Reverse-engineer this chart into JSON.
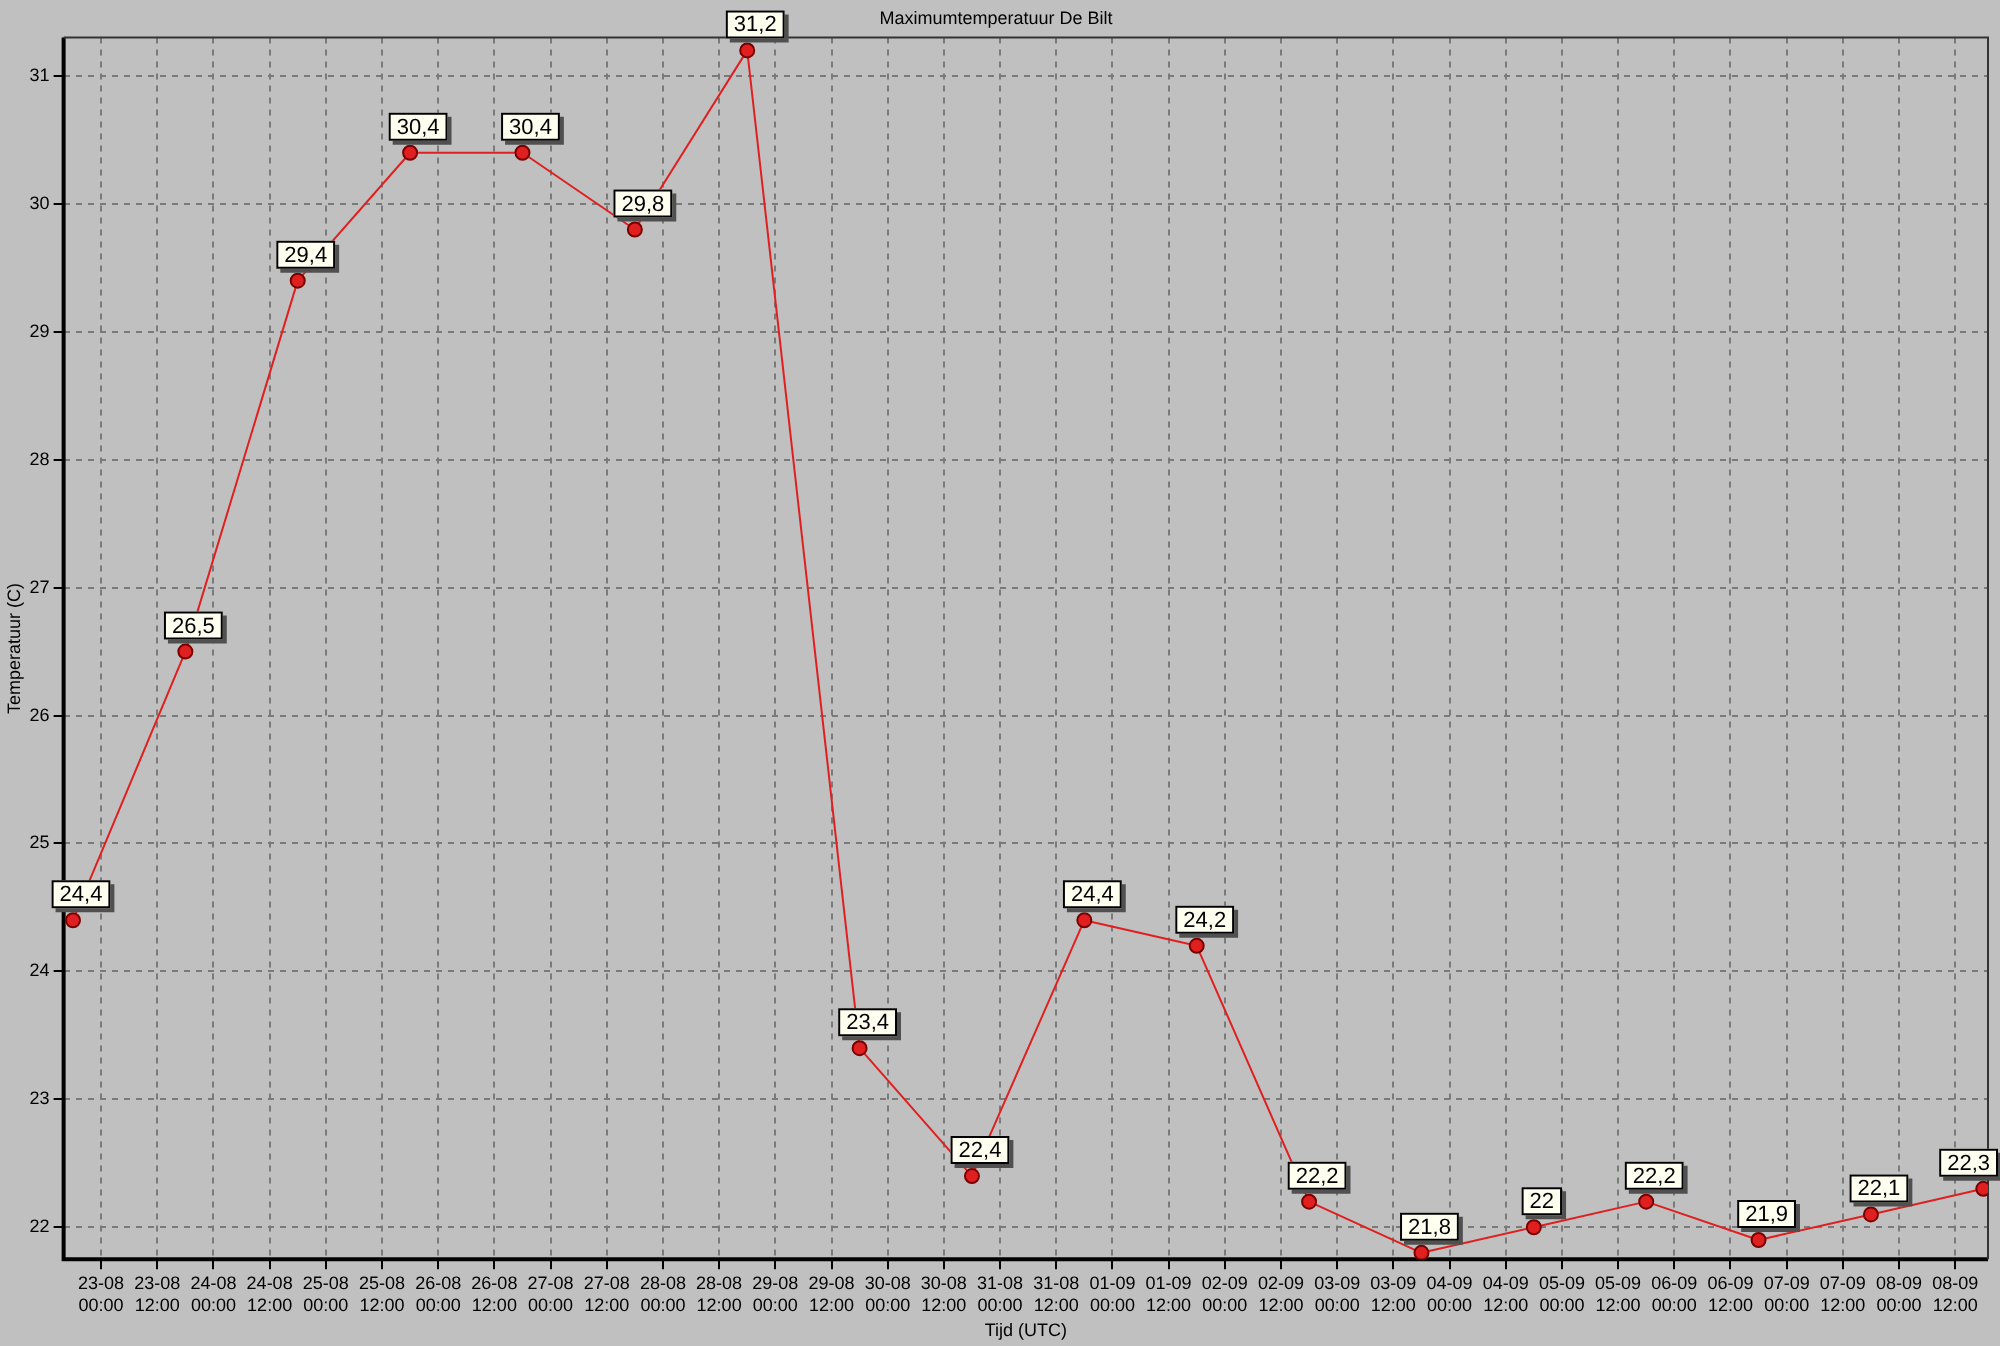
{
  "chart_data": {
    "type": "line",
    "title": "Maximumtemperatuur De Bilt",
    "xlabel": "Tijd (UTC)",
    "ylabel": "Temperatuur (C)",
    "x": [
      "--08-22T18:00",
      "--08-23T18:00",
      "--08-24T18:00",
      "--08-25T18:00",
      "--08-26T18:00",
      "--08-27T18:00",
      "--08-28T18:00",
      "--08-29T18:00",
      "--08-30T18:00",
      "--08-31T18:00",
      "--09-01T18:00",
      "--09-02T18:00",
      "--09-03T18:00",
      "--09-04T18:00",
      "--09-05T18:00",
      "--09-06T18:00",
      "--09-07T18:00",
      "--09-08T18:00"
    ],
    "series": [
      {
        "color": "#e02020",
        "values": [
          24.4,
          26.5,
          29.4,
          30.4,
          30.4,
          29.8,
          31.2,
          23.4,
          22.4,
          24.4,
          24.2,
          22.2,
          21.8,
          22,
          22.2,
          21.9,
          22.1,
          22.3
        ],
        "value_labels": [
          "24,4",
          "26,5",
          "29,4",
          "30,4",
          "30,4",
          "29,8",
          "31,2",
          "23,4",
          "22,4",
          "24,4",
          "24,2",
          "22,2",
          "21,8",
          "22",
          "22,2",
          "21,9",
          "22,1",
          "22,3"
        ]
      }
    ],
    "xlim": [
      "--08-22T16:00",
      "--09-08T19:00"
    ],
    "xticks": [
      {
        "value": "--08-23T00:00",
        "label": "23-08 00:00"
      },
      {
        "value": "--08-23T12:00",
        "label": "23-08 12:00"
      },
      {
        "value": "--08-24T00:00",
        "label": "24-08 00:00"
      },
      {
        "value": "--08-24T12:00",
        "label": "24-08 12:00"
      },
      {
        "value": "--08-25T00:00",
        "label": "25-08 00:00"
      },
      {
        "value": "--08-25T12:00",
        "label": "25-08 12:00"
      },
      {
        "value": "--08-26T00:00",
        "label": "26-08 00:00"
      },
      {
        "value": "--08-26T12:00",
        "label": "26-08 12:00"
      },
      {
        "value": "--08-27T00:00",
        "label": "27-08 00:00"
      },
      {
        "value": "--08-27T12:00",
        "label": "27-08 12:00"
      },
      {
        "value": "--08-28T00:00",
        "label": "28-08 00:00"
      },
      {
        "value": "--08-28T12:00",
        "label": "28-08 12:00"
      },
      {
        "value": "--08-29T00:00",
        "label": "29-08 00:00"
      },
      {
        "value": "--08-29T12:00",
        "label": "29-08 12:00"
      },
      {
        "value": "--08-30T00:00",
        "label": "30-08 00:00"
      },
      {
        "value": "--08-30T12:00",
        "label": "30-08 12:00"
      },
      {
        "value": "--08-31T00:00",
        "label": "31-08 00:00"
      },
      {
        "value": "--08-31T12:00",
        "label": "31-08 12:00"
      },
      {
        "value": "--09-01T00:00",
        "label": "01-09 00:00"
      },
      {
        "value": "--09-01T12:00",
        "label": "01-09 12:00"
      },
      {
        "value": "--09-02T00:00",
        "label": "02-09 00:00"
      },
      {
        "value": "--09-02T12:00",
        "label": "02-09 12:00"
      },
      {
        "value": "--09-03T00:00",
        "label": "03-09 00:00"
      },
      {
        "value": "--09-03T12:00",
        "label": "03-09 12:00"
      },
      {
        "value": "--09-04T00:00",
        "label": "04-09 00:00"
      },
      {
        "value": "--09-04T12:00",
        "label": "04-09 12:00"
      },
      {
        "value": "--09-05T00:00",
        "label": "05-09 00:00"
      },
      {
        "value": "--09-05T12:00",
        "label": "05-09 12:00"
      },
      {
        "value": "--09-06T00:00",
        "label": "06-09 00:00"
      },
      {
        "value": "--09-06T12:00",
        "label": "06-09 12:00"
      },
      {
        "value": "--09-07T00:00",
        "label": "07-09 00:00"
      },
      {
        "value": "--09-07T12:00",
        "label": "07-09 12:00"
      },
      {
        "value": "--09-08T00:00",
        "label": "08-09 00:00"
      },
      {
        "value": "--09-08T12:00",
        "label": "08-09 12:00"
      }
    ],
    "ylim": [
      21.75,
      31.3
    ],
    "yticks": [
      22,
      23,
      24,
      25,
      26,
      27,
      28,
      29,
      30,
      31
    ],
    "grid": true,
    "marker": "circle",
    "line_style": "solid"
  }
}
